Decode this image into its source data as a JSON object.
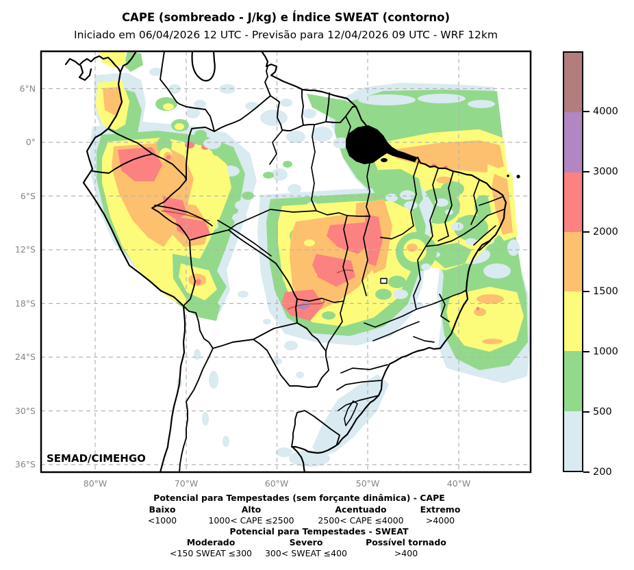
{
  "header": {
    "title": "CAPE (sombreado - J/kg) e Índice SWEAT (contorno)",
    "subtitle": "Iniciado em 06/04/2026 12 UTC - Previsão para 12/04/2026 09 UTC - WRF 12km"
  },
  "map": {
    "watermark": "SEMAD/CIMEHGO",
    "lat_ticks": [
      {
        "label": "6°N"
      },
      {
        "label": "0°"
      },
      {
        "label": "6°S"
      },
      {
        "label": "12°S"
      },
      {
        "label": "18°S"
      },
      {
        "label": "24°S"
      },
      {
        "label": "30°S"
      },
      {
        "label": "36°S"
      }
    ],
    "lon_ticks": [
      {
        "label": "80°W"
      },
      {
        "label": "70°W"
      },
      {
        "label": "60°W"
      },
      {
        "label": "50°W"
      },
      {
        "label": "40°W"
      }
    ]
  },
  "colorbar": {
    "tick_labels": [
      "4000",
      "3000",
      "2000",
      "1500",
      "1000",
      "500",
      "200"
    ],
    "segment_colors_top_to_bottom": [
      "brown",
      "purple",
      "red",
      "orange",
      "yellow",
      "green",
      "lightblue"
    ]
  },
  "palette": {
    "brown": "#b27d7c",
    "purple": "#b286c3",
    "red": "#fc8181",
    "orange": "#fdc06e",
    "yellow": "#fcfc7a",
    "green": "#93d98b",
    "lightblue": "#d9eaf1",
    "contour": "#9c5230",
    "grid": "#b3b3b3",
    "axis_text": "#848484"
  },
  "legend": {
    "cape_title": "Potencial para Tempestades (sem forçante dinâmica) - CAPE",
    "cape_items": [
      {
        "name": "Baixo",
        "range": "<1000"
      },
      {
        "name": "Alto",
        "range": "1000< CAPE ≤2500"
      },
      {
        "name": "Acentuado",
        "range": "2500< CAPE ≤4000"
      },
      {
        "name": "Extremo",
        "range": ">4000"
      }
    ],
    "sweat_title": "Potencial para Tempestades - SWEAT",
    "sweat_items": [
      {
        "name": "Moderado",
        "range": "<150 SWEAT ≤300"
      },
      {
        "name": "Severo",
        "range": "300< SWEAT ≤400"
      },
      {
        "name": "Possível tornado",
        "range": ">400"
      }
    ]
  }
}
